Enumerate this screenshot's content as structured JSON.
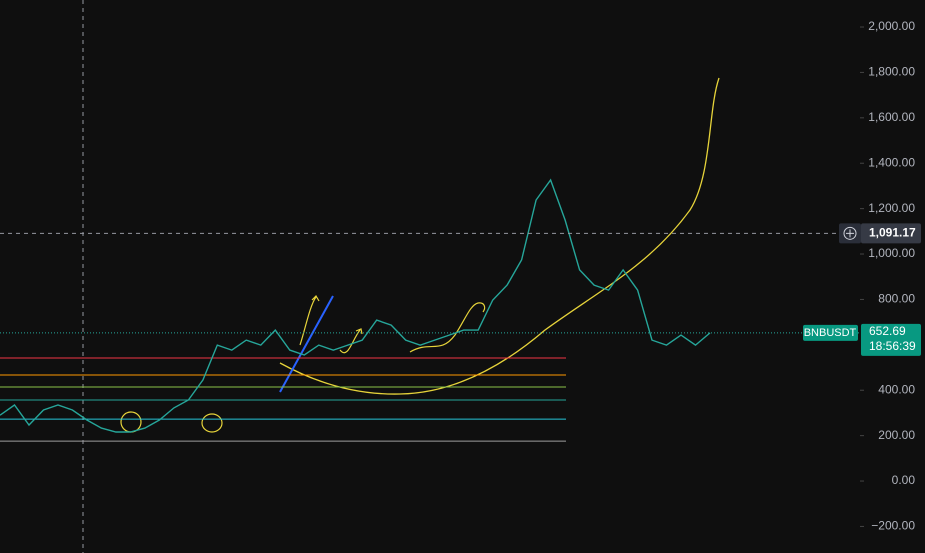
{
  "chart_data": {
    "type": "line",
    "symbol": "BNBUSDT",
    "countdown": "18:56:39",
    "values": [
      290,
      335,
      247,
      313,
      335,
      313,
      269,
      233,
      216,
      216,
      233,
      269,
      322,
      357,
      445,
      599,
      577,
      621,
      599,
      665,
      577,
      555,
      599,
      577,
      599,
      621,
      709,
      687,
      621,
      599,
      621,
      643,
      665,
      665,
      797,
      863,
      974,
      1238,
      1326,
      1150,
      930,
      863,
      841,
      930,
      841,
      621,
      599,
      643,
      599,
      652.69
    ],
    "color": "#26a69a",
    "ylim": [
      -317,
      2119
    ],
    "yticks": [
      {
        "value": -200,
        "label": "−200.00"
      },
      {
        "value": 0,
        "label": "0.00"
      },
      {
        "value": 200,
        "label": "200.00"
      },
      {
        "value": 400,
        "label": "400.00"
      },
      {
        "value": 800,
        "label": "800.00"
      },
      {
        "value": 1000,
        "label": "1,000.00"
      },
      {
        "value": 1200,
        "label": "1,200.00"
      },
      {
        "value": 1400,
        "label": "1,400.00"
      },
      {
        "value": 1600,
        "label": "1,600.00"
      },
      {
        "value": 1800,
        "label": "1,800.00"
      },
      {
        "value": 2000,
        "label": "2,000.00"
      }
    ],
    "levels": [
      {
        "value": 542,
        "color": "#f23645"
      },
      {
        "value": 467,
        "color": "#ff9800"
      },
      {
        "value": 414,
        "color": "#8bc34a"
      },
      {
        "value": 357,
        "color": "#26a69a"
      },
      {
        "value": 273,
        "color": "#26c6da"
      },
      {
        "value": 176,
        "color": "#9e9e9e"
      }
    ],
    "last_price": 652.69,
    "crosshair": {
      "value": 1091.17,
      "label": "1,091.17"
    }
  }
}
